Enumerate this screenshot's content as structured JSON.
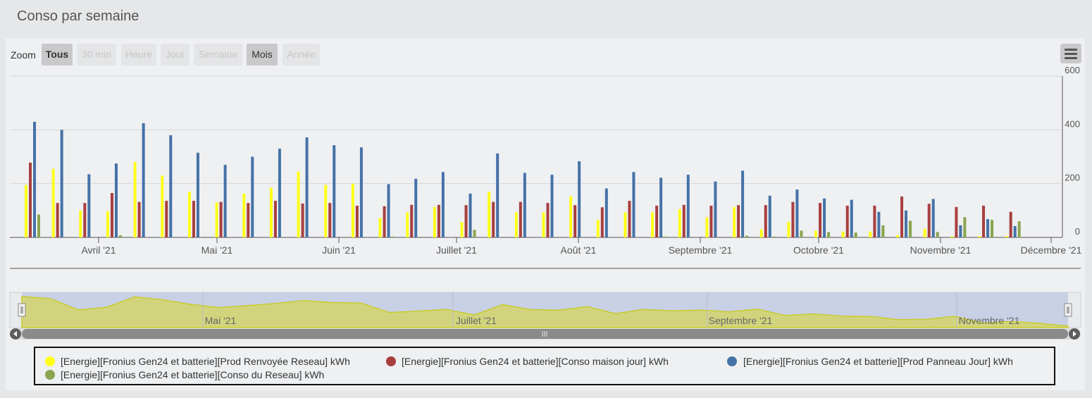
{
  "title": "Conso par semaine",
  "zoom": {
    "label": "Zoom",
    "buttons": [
      {
        "label": "Tous",
        "state": "active"
      },
      {
        "label": "30 min",
        "state": "disabled"
      },
      {
        "label": "Heure",
        "state": "disabled"
      },
      {
        "label": "Jour",
        "state": "disabled"
      },
      {
        "label": "Semaine",
        "state": "disabled"
      },
      {
        "label": "Mois",
        "state": "active"
      },
      {
        "label": "Année",
        "state": "disabled"
      }
    ]
  },
  "menu_icon": "hamburger-icon",
  "legend": [
    {
      "label": "[Energie][Fronius Gen24 et batterie][Prod Renvoyée Reseau] kWh",
      "color": "#ffff1a"
    },
    {
      "label": "[Energie][Fronius Gen24 et batterie][Conso maison jour] kWh",
      "color": "#a83f3f"
    },
    {
      "label": "[Energie][Fronius Gen24 et batterie][Prod Panneau Jour] kWh",
      "color": "#4572a7"
    },
    {
      "label": "[Energie][Fronius Gen24 et batterie][Conso du Reseau] kWh",
      "color": "#89a54e"
    }
  ],
  "navigator": {
    "labels": [
      "Mai '21",
      "Juillet '21",
      "Septembre '21",
      "Novembre '21"
    ]
  },
  "chart_data": {
    "type": "bar",
    "x_tick_labels": [
      "Avril '21",
      "Mai '21",
      "Juin '21",
      "Juillet '21",
      "Août '21",
      "Septembre '21",
      "Octobre '21",
      "Novembre '21",
      "Décembre '21"
    ],
    "y_ticks": [
      0,
      200,
      400,
      600
    ],
    "ylim": [
      0,
      600
    ],
    "y_axis_side": "right",
    "grid": true,
    "weeks": 38,
    "series": [
      {
        "name": "[Energie][Fronius Gen24 et batterie][Prod Renvoyée Reseau] kWh",
        "color": "#ffff1a",
        "values": [
          195,
          255,
          100,
          97,
          280,
          230,
          170,
          130,
          163,
          185,
          245,
          195,
          200,
          72,
          93,
          113,
          57,
          170,
          93,
          93,
          153,
          65,
          93,
          93,
          105,
          75,
          113,
          30,
          58,
          25,
          22,
          22,
          8,
          32,
          5,
          5,
          5,
          0
        ]
      },
      {
        "name": "[Energie][Fronius Gen24 et batterie][Conso maison jour] kWh",
        "color": "#a83f3f",
        "values": [
          278,
          128,
          128,
          165,
          132,
          136,
          136,
          132,
          128,
          136,
          126,
          128,
          118,
          116,
          121,
          121,
          120,
          132,
          132,
          128,
          120,
          112,
          136,
          118,
          121,
          118,
          120,
          120,
          132,
          128,
          118,
          118,
          152,
          125,
          113,
          118,
          95,
          0
        ]
      },
      {
        "name": "[Energie][Fronius Gen24 et batterie][Prod Panneau Jour] kWh",
        "color": "#4572a7",
        "values": [
          430,
          400,
          235,
          275,
          425,
          380,
          315,
          270,
          300,
          330,
          372,
          343,
          335,
          198,
          218,
          243,
          163,
          312,
          240,
          233,
          283,
          182,
          243,
          222,
          233,
          208,
          248,
          155,
          178,
          145,
          140,
          95,
          100,
          143,
          45,
          68,
          42,
          0
        ]
      },
      {
        "name": "[Energie][Fronius Gen24 et batterie][Conso du Reseau] kWh",
        "color": "#89a54e",
        "values": [
          85,
          0,
          0,
          8,
          0,
          0,
          0,
          0,
          0,
          0,
          0,
          0,
          0,
          3,
          0,
          0,
          28,
          0,
          0,
          0,
          0,
          0,
          0,
          3,
          0,
          0,
          6,
          3,
          25,
          20,
          18,
          45,
          62,
          20,
          75,
          65,
          60,
          0
        ]
      }
    ]
  }
}
